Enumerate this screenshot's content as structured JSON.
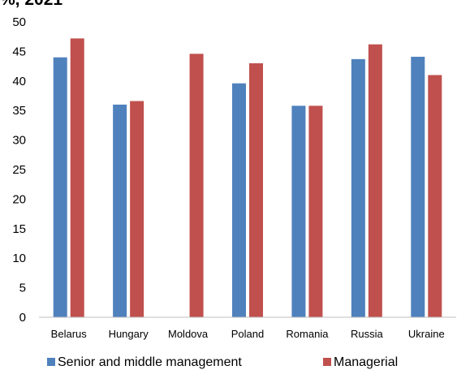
{
  "title_fragment": "%, 2021",
  "chart_data": {
    "type": "bar",
    "title": "",
    "xlabel": "",
    "ylabel": "",
    "categories": [
      "Belarus",
      "Hungary",
      "Moldova",
      "Poland",
      "Romania",
      "Russia",
      "Ukraine"
    ],
    "series": [
      {
        "name": "Senior and middle management",
        "color": "#4f81bd",
        "values": [
          44.0,
          36.0,
          null,
          39.6,
          35.8,
          43.7,
          44.1
        ]
      },
      {
        "name": "Managerial",
        "color": "#c0504d",
        "values": [
          47.2,
          36.6,
          44.6,
          43.0,
          35.8,
          46.2,
          41.0
        ]
      }
    ],
    "ylim": [
      0,
      50
    ],
    "yticks": [
      0,
      5,
      10,
      15,
      20,
      25,
      30,
      35,
      40,
      45,
      50
    ],
    "grid": false,
    "legend_position": "bottom"
  }
}
